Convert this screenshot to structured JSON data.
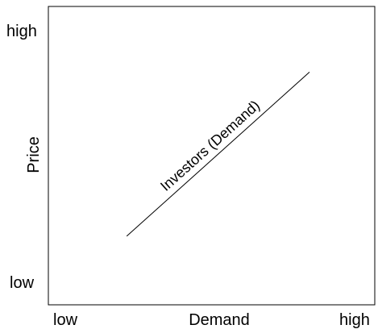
{
  "chart_data": {
    "type": "line",
    "xlabel": "Demand",
    "ylabel": "Price",
    "x_ticks": [
      "low",
      "high"
    ],
    "y_ticks": [
      "high",
      "low"
    ],
    "xlim": [
      0,
      10
    ],
    "ylim": [
      0,
      10
    ],
    "grid": false,
    "legend": "none",
    "series": [
      {
        "name": "Investors (Demand)",
        "x": [
          2.4,
          8.0
        ],
        "y": [
          2.3,
          7.8
        ],
        "color": "#000000"
      }
    ]
  }
}
